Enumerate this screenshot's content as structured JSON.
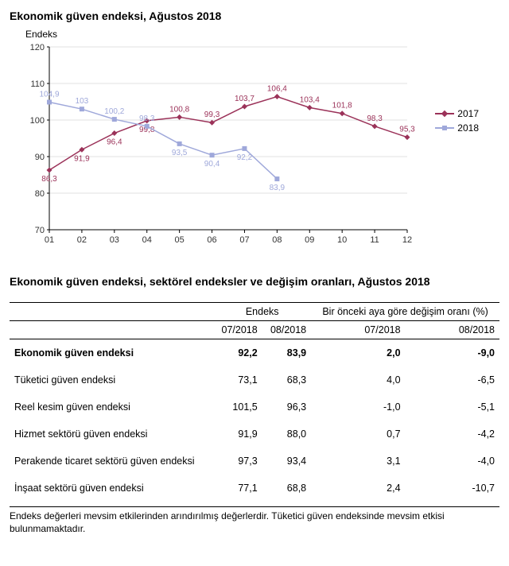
{
  "chart": {
    "title": "Ekonomik güven endeksi, Ağustos 2018",
    "y_axis_label": "Endeks",
    "type": "line",
    "background_color": "#ffffff",
    "ylim": [
      70,
      120
    ],
    "ytick_step": 10,
    "yticks": [
      70,
      80,
      90,
      100,
      110,
      120
    ],
    "categories": [
      "01",
      "02",
      "03",
      "04",
      "05",
      "06",
      "07",
      "08",
      "09",
      "10",
      "11",
      "12"
    ],
    "series": [
      {
        "name": "2017",
        "color": "#9b3259",
        "marker": "diamond",
        "values": [
          86.3,
          91.9,
          96.4,
          99.8,
          100.8,
          99.3,
          103.7,
          106.4,
          103.4,
          101.8,
          98.3,
          95.3
        ]
      },
      {
        "name": "2018",
        "color": "#9fa8da",
        "marker": "square",
        "values": [
          104.9,
          103.0,
          100.2,
          98.3,
          93.5,
          90.4,
          92.2,
          83.9
        ]
      }
    ],
    "label_fontsize": 10
  },
  "table": {
    "title": "Ekonomik güven endeksi, sektörel endeksler ve değişim oranları, Ağustos 2018",
    "header_group_1": "Endeks",
    "header_group_2": "Bir önceki aya göre değişim oranı (%)",
    "columns": [
      "",
      "07/2018",
      "08/2018",
      "07/2018",
      "08/2018"
    ],
    "rows": [
      {
        "label": "Ekonomik güven endeksi",
        "v": [
          "92,2",
          "83,9",
          "2,0",
          "-9,0"
        ],
        "bold": true
      },
      {
        "label": "Tüketici güven endeksi",
        "v": [
          "73,1",
          "68,3",
          "4,0",
          "-6,5"
        ]
      },
      {
        "label": "Reel kesim güven endeksi",
        "v": [
          "101,5",
          "96,3",
          "-1,0",
          "-5,1"
        ]
      },
      {
        "label": "Hizmet sektörü güven endeksi",
        "v": [
          "91,9",
          "88,0",
          "0,7",
          "-4,2"
        ]
      },
      {
        "label": "Perakende ticaret sektörü güven endeksi",
        "v": [
          "97,3",
          "93,4",
          "3,1",
          "-4,0"
        ]
      },
      {
        "label": "İnşaat sektörü güven endeksi",
        "v": [
          "77,1",
          "68,8",
          "2,4",
          "-10,7"
        ]
      }
    ],
    "footnote": "Endeks değerleri mevsim etkilerinden arındırılmış değerlerdir. Tüketici güven endeksinde mevsim etkisi bulunmamaktadır."
  }
}
